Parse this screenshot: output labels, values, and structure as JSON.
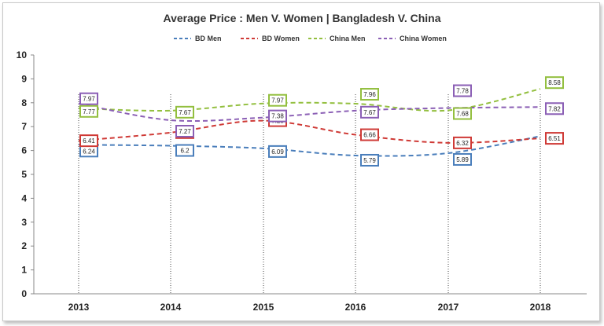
{
  "chart_data": {
    "type": "line",
    "title": "Average Price : Men V. Women | Bangladesh V. China",
    "xlabel": "",
    "ylabel": "",
    "categories": [
      "2013",
      "2014",
      "2015",
      "2016",
      "2017",
      "2018"
    ],
    "ylim": [
      0,
      10
    ],
    "yticks": [
      "0",
      "1",
      "2",
      "3",
      "4",
      "5",
      "6",
      "7",
      "8",
      "9",
      "10"
    ],
    "grid": false,
    "legend_position": "top",
    "line_style": "dashed, smoothed",
    "series": [
      {
        "name": "BD Men",
        "color": "#4a7ebb",
        "values": [
          6.24,
          6.2,
          6.09,
          5.79,
          5.89,
          6.6
        ],
        "labels": [
          "6.24",
          "6.2",
          "6.09",
          "5.79",
          "5.89",
          null
        ]
      },
      {
        "name": "BD Women",
        "color": "#cf3a36",
        "values": [
          6.41,
          6.75,
          7.25,
          6.66,
          6.32,
          6.51
        ],
        "labels": [
          "6.41",
          "6.75",
          "7.25",
          "6.66",
          "6.32",
          "6.51"
        ]
      },
      {
        "name": "China Men",
        "color": "#93bf3f",
        "values": [
          7.77,
          7.67,
          7.97,
          7.96,
          7.68,
          8.58
        ],
        "labels": [
          "7.77",
          "7.67",
          "7.97",
          "7.96",
          "7.68",
          "8.58"
        ]
      },
      {
        "name": "China Women",
        "color": "#8b5fb5",
        "values": [
          7.97,
          7.27,
          7.38,
          7.67,
          7.78,
          7.82
        ],
        "labels": [
          "7.97",
          "7.27",
          "7.38",
          "7.67",
          "7.78",
          "7.82"
        ]
      }
    ]
  }
}
